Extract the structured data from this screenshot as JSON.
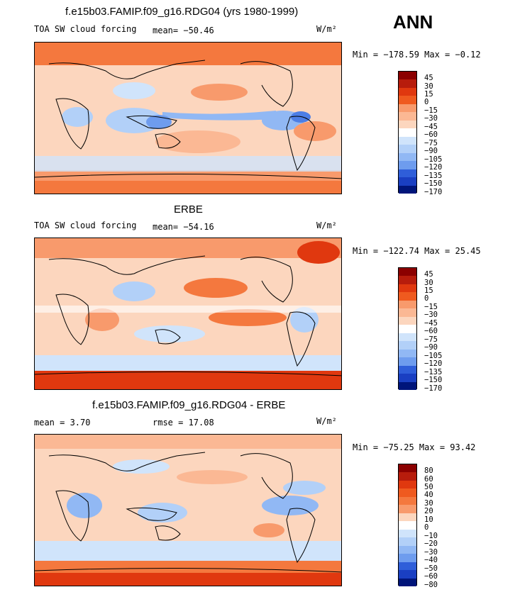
{
  "figure": {
    "season": "ANN",
    "units": "W/m²"
  },
  "panels": [
    {
      "title": "f.e15b03.FAMIP.f09_g16.RDG04 (yrs 1980-1999)",
      "variable": "TOA SW cloud forcing",
      "mean_text": "mean= −50.46",
      "minmax_text": "Min = −178.59 Max =  −0.12",
      "levels": [
        "45",
        "30",
        "15",
        "0",
        "−15",
        "−30",
        "−45",
        "−60",
        "−75",
        "−90",
        "−105",
        "−120",
        "−135",
        "−150",
        "−170"
      ]
    },
    {
      "title": "ERBE",
      "variable": "TOA SW cloud forcing",
      "mean_text": "mean= −54.16",
      "minmax_text": "Min = −122.74 Max =  25.45",
      "levels": [
        "45",
        "30",
        "15",
        "0",
        "−15",
        "−30",
        "−45",
        "−60",
        "−75",
        "−90",
        "−105",
        "−120",
        "−135",
        "−150",
        "−170"
      ]
    },
    {
      "title": "f.e15b03.FAMIP.f09_g16.RDG04 - ERBE",
      "mean_text": "mean =    3.70",
      "rmse_text": "rmse =   17.08",
      "minmax_text": "Min = −75.25 Max =  93.42",
      "levels": [
        "80",
        "60",
        "50",
        "40",
        "30",
        "20",
        "10",
        "0",
        "−10",
        "−20",
        "−30",
        "−40",
        "−50",
        "−60",
        "−80"
      ]
    }
  ],
  "colors": [
    "#8b0000",
    "#b71c0c",
    "#e0380f",
    "#ef5a1f",
    "#f4783e",
    "#f89a6c",
    "#fbb894",
    "#fcd6be",
    "#ffffff",
    "#d0e4fb",
    "#b2d0f8",
    "#91b8f4",
    "#6e9cee",
    "#4c7ee6",
    "#2f5ed9",
    "#1a3fc2",
    "#0b23a0",
    "#00157a"
  ]
}
